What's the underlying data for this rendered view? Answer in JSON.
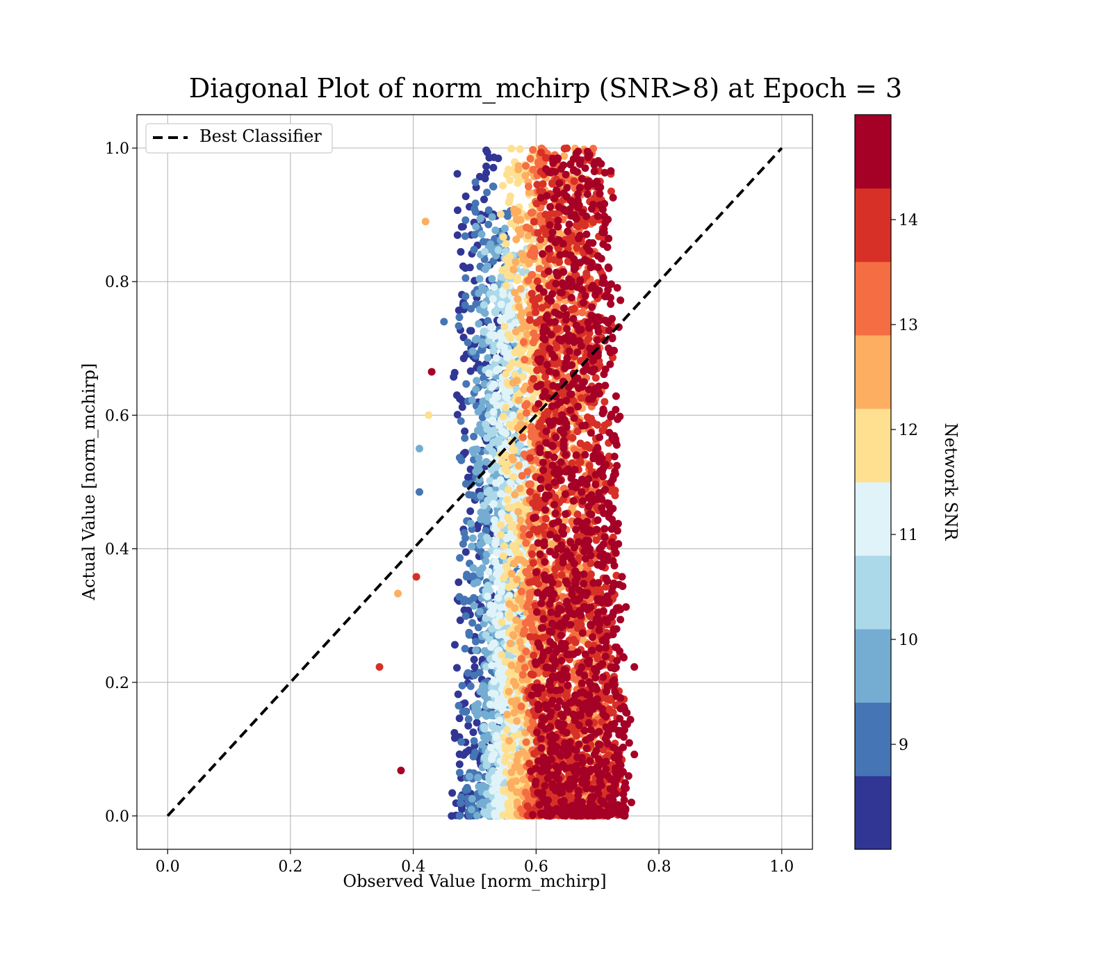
{
  "chart_data": {
    "type": "scatter",
    "title": "Diagonal Plot of norm_mchirp (SNR>8) at Epoch = 3",
    "xlabel": "Observed Value [norm_mchirp]",
    "ylabel": "Actual Value [norm_mchirp]",
    "xlim": [
      -0.05,
      1.05
    ],
    "ylim": [
      -0.05,
      1.05
    ],
    "xticks": [
      "0.0",
      "0.2",
      "0.4",
      "0.6",
      "0.8",
      "1.0"
    ],
    "yticks": [
      "0.0",
      "0.2",
      "0.4",
      "0.6",
      "0.8",
      "1.0"
    ],
    "grid": true,
    "legend": {
      "position": "top-left",
      "entries": [
        "Best Classifier"
      ]
    },
    "reference_line": {
      "name": "Best Classifier",
      "style": "dashed",
      "color": "#000000",
      "x": [
        0.0,
        1.0
      ],
      "y": [
        0.0,
        1.0
      ]
    },
    "colorbar": {
      "label": "Network SNR",
      "min": 8,
      "max": 15,
      "tick_values": [
        9,
        10,
        11,
        12,
        13,
        14
      ],
      "tick_labels": [
        "9",
        "10",
        "11",
        "12",
        "13",
        "14"
      ],
      "colors": [
        "#313695",
        "#4575b4",
        "#74add1",
        "#abd9e9",
        "#e0f3f8",
        "#fee090",
        "#fdae61",
        "#f46d43",
        "#d73027",
        "#a50026"
      ]
    },
    "clusters": [
      {
        "snr": 8.3,
        "x_range": [
          0.47,
          0.56
        ],
        "y_range": [
          0.0,
          1.0
        ]
      },
      {
        "snr": 9.0,
        "x_range": [
          0.48,
          0.58
        ],
        "y_range": [
          0.0,
          0.95
        ]
      },
      {
        "snr": 9.8,
        "x_range": [
          0.5,
          0.59
        ],
        "y_range": [
          0.0,
          0.9
        ]
      },
      {
        "snr": 10.5,
        "x_range": [
          0.52,
          0.6
        ],
        "y_range": [
          0.0,
          0.85
        ]
      },
      {
        "snr": 11.3,
        "x_range": [
          0.53,
          0.61
        ],
        "y_range": [
          0.0,
          0.8
        ]
      },
      {
        "snr": 12.0,
        "x_range": [
          0.55,
          0.63
        ],
        "y_range": [
          0.0,
          1.0
        ]
      },
      {
        "snr": 12.7,
        "x_range": [
          0.56,
          0.7
        ],
        "y_range": [
          0.0,
          1.0
        ]
      },
      {
        "snr": 13.4,
        "x_range": [
          0.58,
          0.72
        ],
        "y_range": [
          0.0,
          1.0
        ]
      },
      {
        "snr": 14.2,
        "x_range": [
          0.59,
          0.74
        ],
        "y_range": [
          0.0,
          1.0
        ]
      },
      {
        "snr": 14.8,
        "x_range": [
          0.6,
          0.75
        ],
        "y_range": [
          0.0,
          1.0
        ]
      }
    ],
    "outliers": [
      {
        "x": 0.42,
        "y": 0.89,
        "snr": 12.5
      },
      {
        "x": 0.43,
        "y": 0.665,
        "snr": 14.9
      },
      {
        "x": 0.45,
        "y": 0.74,
        "snr": 9.0
      },
      {
        "x": 0.41,
        "y": 0.55,
        "snr": 9.8
      },
      {
        "x": 0.41,
        "y": 0.485,
        "snr": 9.0
      },
      {
        "x": 0.405,
        "y": 0.358,
        "snr": 14.2
      },
      {
        "x": 0.375,
        "y": 0.333,
        "snr": 12.5
      },
      {
        "x": 0.345,
        "y": 0.223,
        "snr": 14.2
      },
      {
        "x": 0.38,
        "y": 0.068,
        "snr": 14.9
      },
      {
        "x": 0.425,
        "y": 0.6,
        "snr": 12.0
      },
      {
        "x": 0.76,
        "y": 0.223,
        "snr": 14.9
      },
      {
        "x": 0.76,
        "y": 0.092,
        "snr": 14.9
      }
    ]
  }
}
